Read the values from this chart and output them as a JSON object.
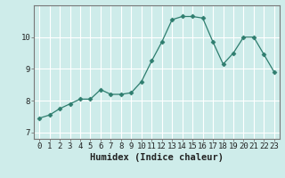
{
  "x": [
    0,
    1,
    2,
    3,
    4,
    5,
    6,
    7,
    8,
    9,
    10,
    11,
    12,
    13,
    14,
    15,
    16,
    17,
    18,
    19,
    20,
    21,
    22,
    23
  ],
  "y": [
    7.45,
    7.55,
    7.75,
    7.9,
    8.05,
    8.05,
    8.35,
    8.2,
    8.2,
    8.25,
    8.6,
    9.25,
    9.85,
    10.55,
    10.65,
    10.65,
    10.6,
    9.85,
    9.15,
    9.5,
    10.0,
    10.0,
    9.45,
    8.9
  ],
  "line_color": "#2e7d6e",
  "marker": "D",
  "marker_size": 2.5,
  "linewidth": 0.9,
  "xlabel": "Humidex (Indice chaleur)",
  "xlim": [
    -0.5,
    23.5
  ],
  "ylim": [
    6.8,
    11.0
  ],
  "yticks": [
    7,
    8,
    9,
    10
  ],
  "xticks": [
    0,
    1,
    2,
    3,
    4,
    5,
    6,
    7,
    8,
    9,
    10,
    11,
    12,
    13,
    14,
    15,
    16,
    17,
    18,
    19,
    20,
    21,
    22,
    23
  ],
  "bg_color": "#ceecea",
  "grid_color": "#ffffff",
  "spine_color": "#777777",
  "tick_color": "#222222",
  "xlabel_fontsize": 7.5,
  "tick_fontsize": 6.5
}
